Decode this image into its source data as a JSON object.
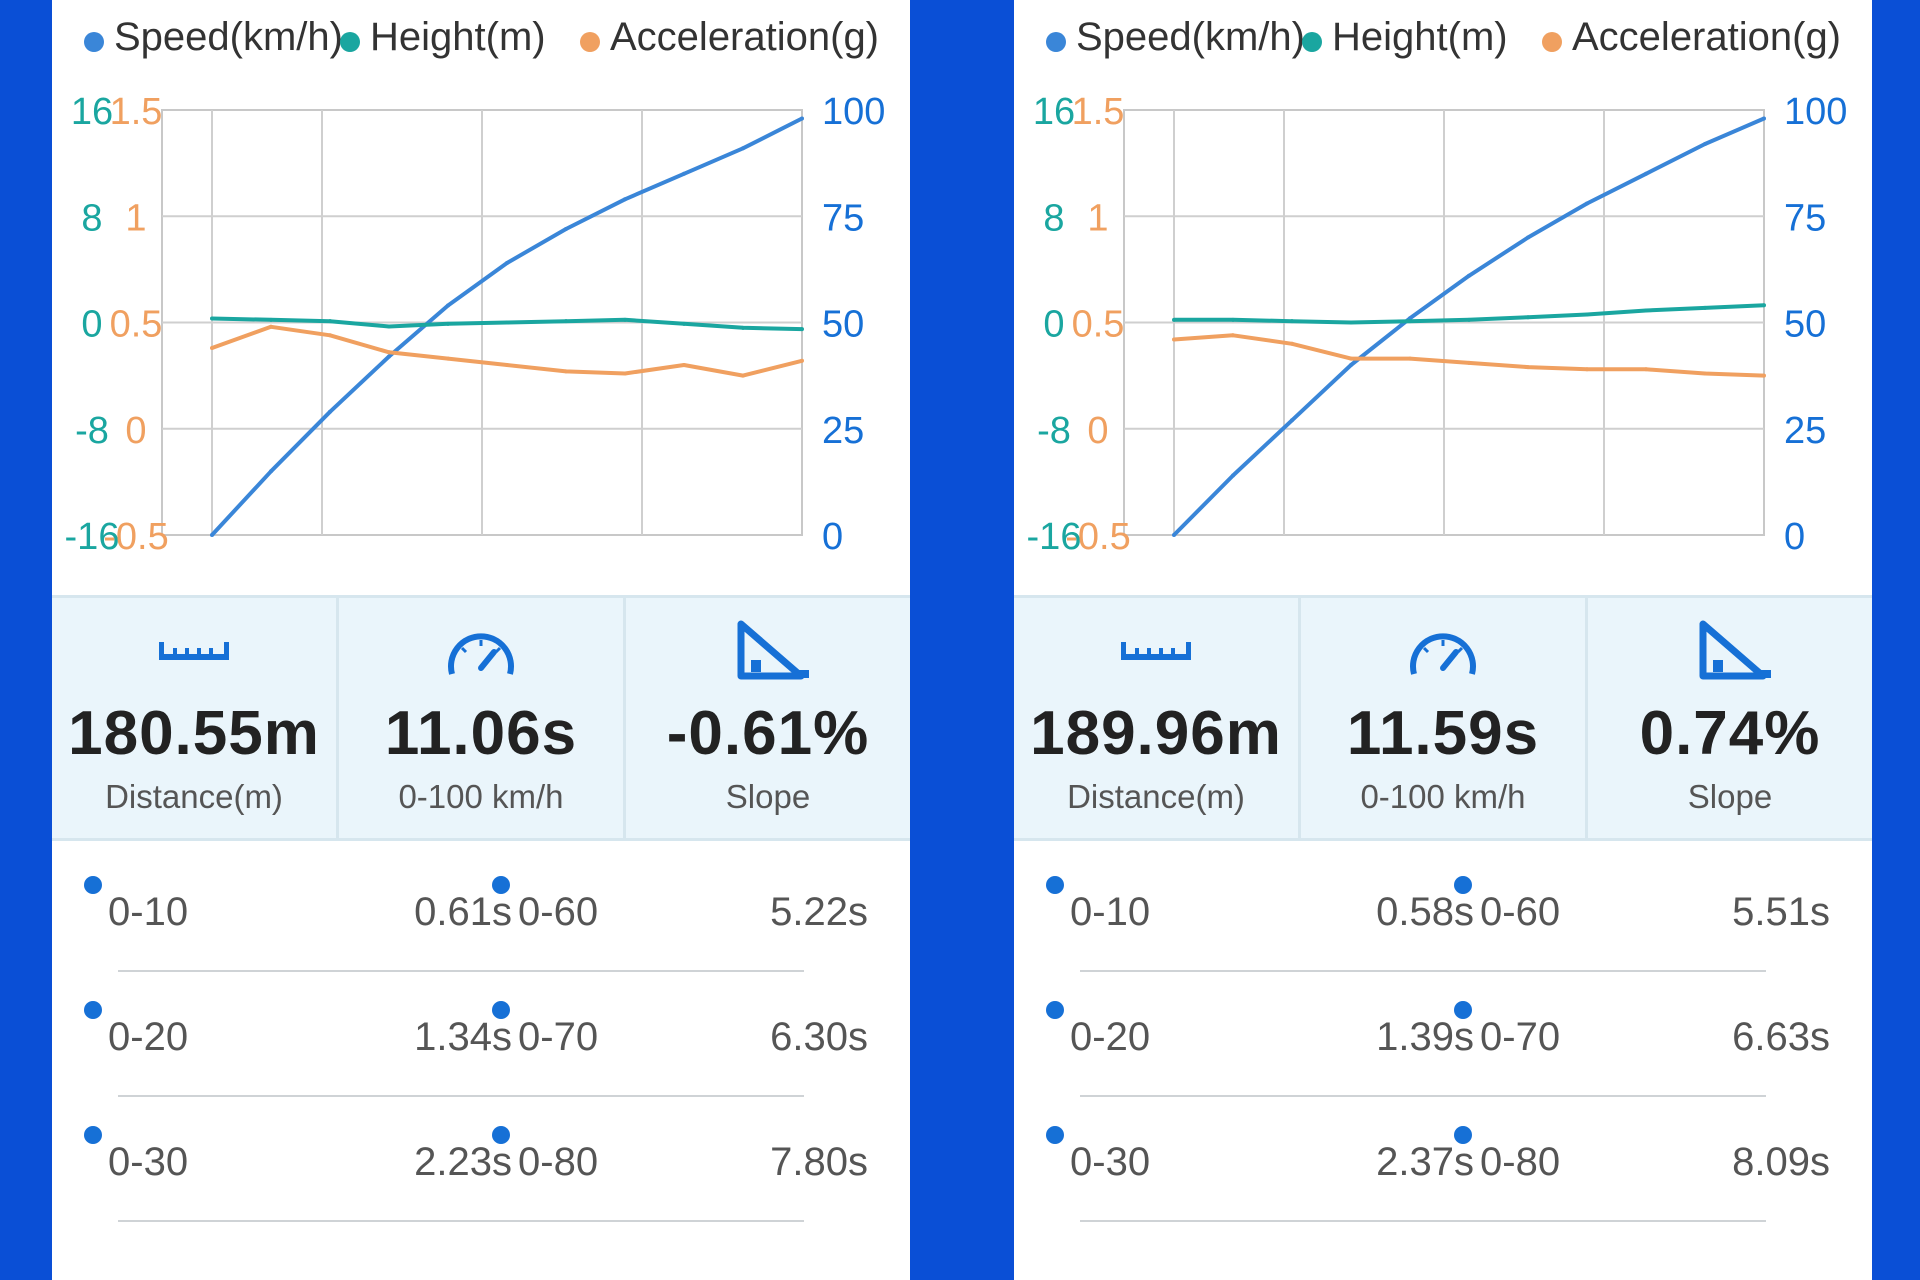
{
  "colors": {
    "background": "#0a4fd6",
    "speed": "#3a86d8",
    "height": "#1aa6a0",
    "acceleration": "#f0a060",
    "split_dot": "#1670d6"
  },
  "panels": [
    {
      "legend": {
        "speed": "Speed(km/h)",
        "height": "Height(m)",
        "acceleration": "Acceleration(g)"
      },
      "axes": {
        "height_ticks": [
          "16",
          "8",
          "0",
          "-8",
          "-16"
        ],
        "accel_ticks": [
          "1.5",
          "1",
          "0.5",
          "0",
          "-0.5"
        ],
        "speed_ticks": [
          "100",
          "75",
          "50",
          "25",
          "0"
        ]
      },
      "stats": {
        "distance": {
          "value": "180.55m",
          "label": "Distance(m)",
          "icon": "ruler-icon"
        },
        "time": {
          "value": "11.06s",
          "label": "0-100 km/h",
          "icon": "speedometer-icon"
        },
        "slope": {
          "value": "-0.61%",
          "label": "Slope",
          "icon": "slope-icon"
        }
      },
      "splits": [
        {
          "left_label": "0-10",
          "left_time": "0.61s",
          "right_label": "0-60",
          "right_time": "5.22s"
        },
        {
          "left_label": "0-20",
          "left_time": "1.34s",
          "right_label": "0-70",
          "right_time": "6.30s"
        },
        {
          "left_label": "0-30",
          "left_time": "2.23s",
          "right_label": "0-80",
          "right_time": "7.80s"
        }
      ]
    },
    {
      "legend": {
        "speed": "Speed(km/h)",
        "height": "Height(m)",
        "acceleration": "Acceleration(g)"
      },
      "axes": {
        "height_ticks": [
          "16",
          "8",
          "0",
          "-8",
          "-16"
        ],
        "accel_ticks": [
          "1.5",
          "1",
          "0.5",
          "0",
          "-0.5"
        ],
        "speed_ticks": [
          "100",
          "75",
          "50",
          "25",
          "0"
        ]
      },
      "stats": {
        "distance": {
          "value": "189.96m",
          "label": "Distance(m)",
          "icon": "ruler-icon"
        },
        "time": {
          "value": "11.59s",
          "label": "0-100 km/h",
          "icon": "speedometer-icon"
        },
        "slope": {
          "value": "0.74%",
          "label": "Slope",
          "icon": "slope-icon"
        }
      },
      "splits": [
        {
          "left_label": "0-10",
          "left_time": "0.58s",
          "right_label": "0-60",
          "right_time": "5.51s"
        },
        {
          "left_label": "0-20",
          "left_time": "1.39s",
          "right_label": "0-70",
          "right_time": "6.63s"
        },
        {
          "left_label": "0-30",
          "left_time": "2.37s",
          "right_label": "0-80",
          "right_time": "8.09s"
        }
      ]
    }
  ],
  "chart_data": [
    {
      "type": "line",
      "x": [
        0,
        0.1,
        0.2,
        0.3,
        0.4,
        0.5,
        0.6,
        0.7,
        0.8,
        0.9,
        1.0
      ],
      "ylim_speed": [
        0,
        100
      ],
      "ylim_height": [
        -16,
        16
      ],
      "ylim_accel": [
        -0.5,
        1.5
      ],
      "series": [
        {
          "name": "Speed(km/h)",
          "axis": "speed",
          "values": [
            0,
            15,
            29,
            42,
            54,
            64,
            72,
            79,
            85,
            91,
            98
          ]
        },
        {
          "name": "Height(m)",
          "axis": "height",
          "values": [
            0.3,
            0.2,
            0.1,
            -0.3,
            -0.1,
            0.0,
            0.1,
            0.2,
            -0.1,
            -0.4,
            -0.5
          ]
        },
        {
          "name": "Acceleration(g)",
          "axis": "accel",
          "values": [
            0.38,
            0.48,
            0.44,
            0.36,
            0.33,
            0.3,
            0.27,
            0.26,
            0.3,
            0.25,
            0.32
          ]
        }
      ]
    },
    {
      "type": "line",
      "x": [
        0,
        0.1,
        0.2,
        0.3,
        0.4,
        0.5,
        0.6,
        0.7,
        0.8,
        0.9,
        1.0
      ],
      "ylim_speed": [
        0,
        100
      ],
      "ylim_height": [
        -16,
        16
      ],
      "ylim_accel": [
        -0.5,
        1.5
      ],
      "series": [
        {
          "name": "Speed(km/h)",
          "axis": "speed",
          "values": [
            0,
            14,
            27,
            40,
            51,
            61,
            70,
            78,
            85,
            92,
            98
          ]
        },
        {
          "name": "Height(m)",
          "axis": "height",
          "values": [
            0.2,
            0.2,
            0.1,
            0.0,
            0.1,
            0.2,
            0.4,
            0.6,
            0.9,
            1.1,
            1.3
          ]
        },
        {
          "name": "Acceleration(g)",
          "axis": "accel",
          "values": [
            0.42,
            0.44,
            0.4,
            0.33,
            0.33,
            0.31,
            0.29,
            0.28,
            0.28,
            0.26,
            0.25
          ]
        }
      ]
    }
  ]
}
